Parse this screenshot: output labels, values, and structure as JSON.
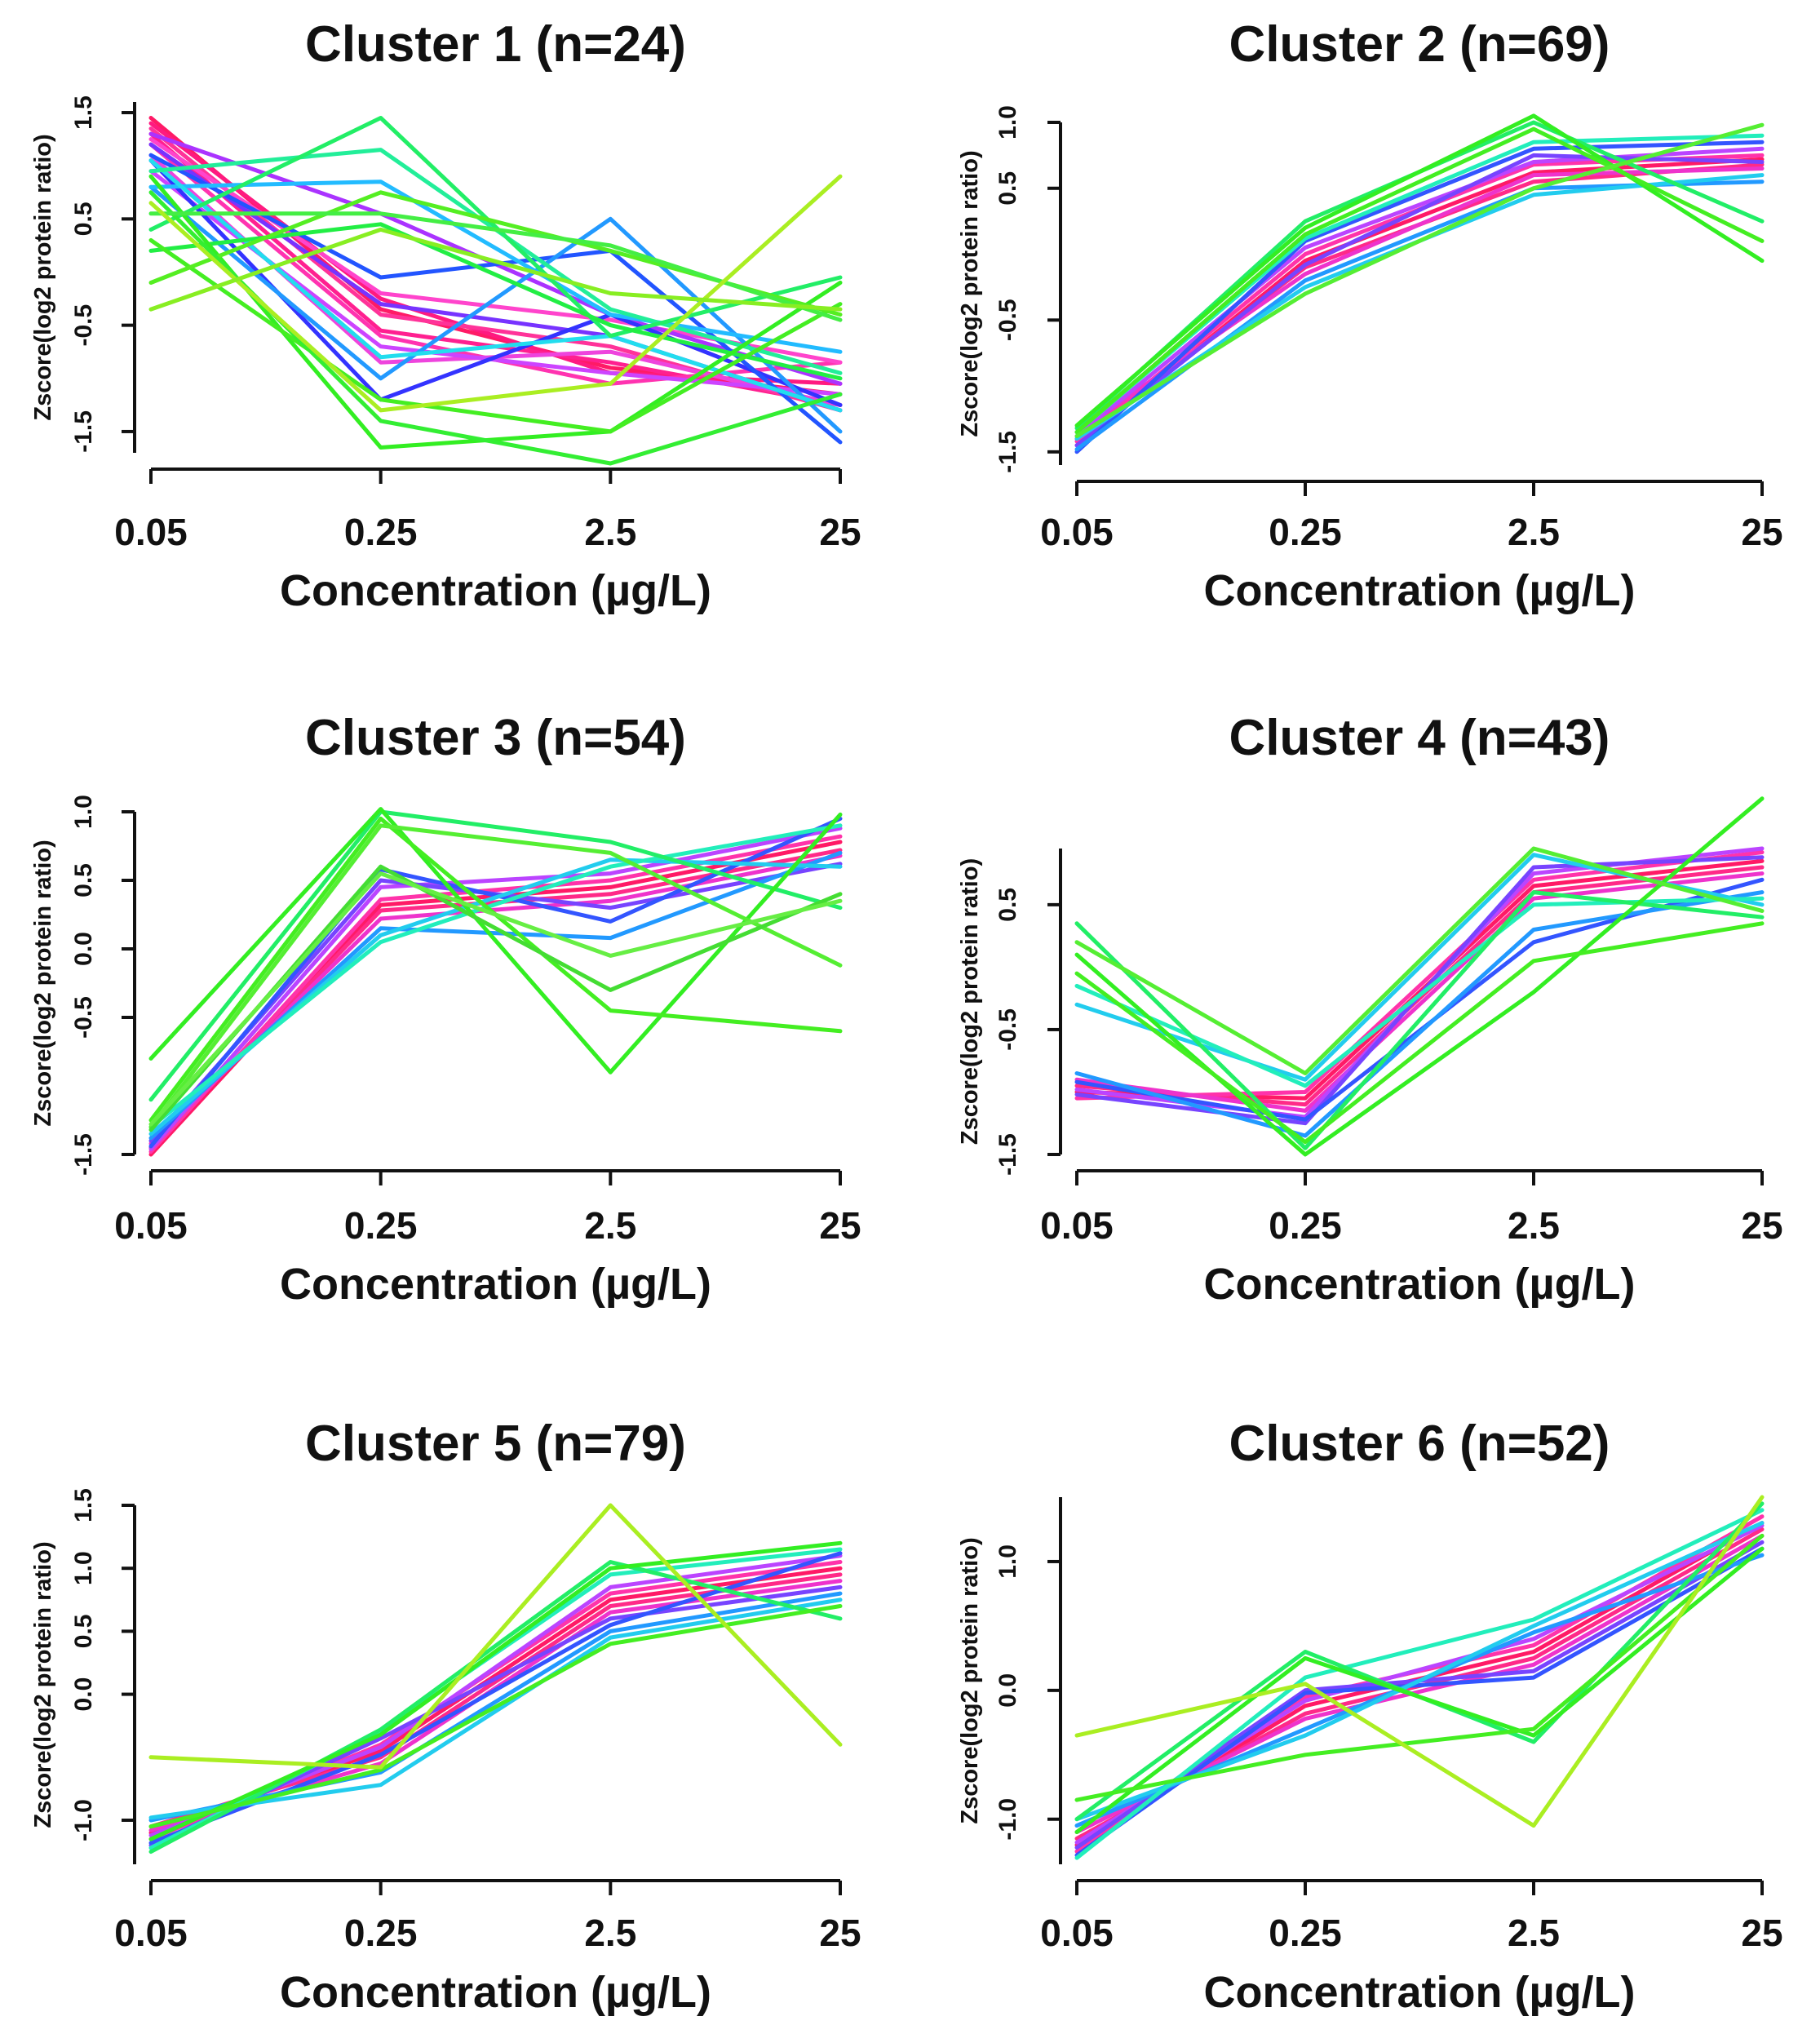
{
  "chart_data": [
    {
      "type": "line",
      "title": "Cluster 1 (n=24)",
      "xlabel": "Concentration (µg/L)",
      "ylabel": "Zscore(log2 protein ratio)",
      "categories": [
        "0.05",
        "0.25",
        "2.5",
        "25"
      ],
      "yticks": [
        "-1.5",
        "-0.5",
        "0.5",
        "1.5"
      ],
      "ylim": [
        -1.7,
        1.6
      ],
      "grid": false,
      "series": [
        {
          "color": "#ff1a66",
          "values": [
            1.45,
            -0.35,
            -0.9,
            -1.15
          ]
        },
        {
          "color": "#ff1a80",
          "values": [
            1.4,
            -0.25,
            -0.95,
            -1.05
          ]
        },
        {
          "color": "#ff2090",
          "values": [
            1.3,
            -0.55,
            -0.85,
            -1.25
          ]
        },
        {
          "color": "#ff3399",
          "values": [
            1.35,
            -0.4,
            -0.7,
            -1.3
          ]
        },
        {
          "color": "#ff33b0",
          "values": [
            1.2,
            -0.6,
            -1.05,
            -0.85
          ]
        },
        {
          "color": "#ff44cc",
          "values": [
            1.25,
            -0.2,
            -0.45,
            -0.85
          ]
        },
        {
          "color": "#ee44dd",
          "values": [
            1.1,
            -0.85,
            -0.75,
            -1.25
          ]
        },
        {
          "color": "#cc44ff",
          "values": [
            0.95,
            -0.7,
            -0.95,
            -1.15
          ]
        },
        {
          "color": "#aa33ff",
          "values": [
            1.3,
            0.55,
            -0.4,
            -1.05
          ]
        },
        {
          "color": "#7733ff",
          "values": [
            1.2,
            -0.3,
            -0.6,
            -1.3
          ]
        },
        {
          "color": "#3333ff",
          "values": [
            1.05,
            -1.2,
            -0.4,
            -1.25
          ]
        },
        {
          "color": "#2255ff",
          "values": [
            1.1,
            -0.05,
            0.2,
            -1.6
          ]
        },
        {
          "color": "#2299ff",
          "values": [
            0.8,
            -1.0,
            0.5,
            -1.5
          ]
        },
        {
          "color": "#22bbff",
          "values": [
            0.8,
            0.85,
            -0.4,
            -0.75
          ]
        },
        {
          "color": "#22ddee",
          "values": [
            1.05,
            -0.8,
            -0.6,
            -1.3
          ]
        },
        {
          "color": "#22ee99",
          "values": [
            0.95,
            1.15,
            -0.35,
            -0.95
          ]
        },
        {
          "color": "#22ee66",
          "values": [
            0.4,
            1.45,
            -0.6,
            -0.05
          ]
        },
        {
          "color": "#22ee44",
          "values": [
            0.2,
            0.45,
            -0.5,
            -1.0
          ]
        },
        {
          "color": "#33ee22",
          "values": [
            0.9,
            -1.65,
            -1.5,
            -0.1
          ]
        },
        {
          "color": "#44ee22",
          "values": [
            0.3,
            -1.2,
            -1.5,
            -0.3
          ]
        },
        {
          "color": "#55ee22",
          "values": [
            -0.1,
            0.75,
            0.2,
            -0.4
          ]
        },
        {
          "color": "#33ee33",
          "values": [
            0.75,
            -1.4,
            -1.8,
            -1.15
          ]
        },
        {
          "color": "#44ee44",
          "values": [
            0.55,
            0.55,
            0.25,
            -0.45
          ]
        },
        {
          "color": "#aaee22",
          "values": [
            0.65,
            -1.3,
            -1.05,
            0.9
          ]
        },
        {
          "color": "#88ee22",
          "values": [
            -0.35,
            0.4,
            -0.2,
            -0.35
          ]
        }
      ]
    },
    {
      "type": "line",
      "title": "Cluster 2 (n=69)",
      "xlabel": "Concentration (µg/L)",
      "ylabel": "Zscore(log2 protein ratio)",
      "categories": [
        "0.05",
        "0.25",
        "2.5",
        "25"
      ],
      "yticks": [
        "-1.5",
        "-0.5",
        "0.5",
        "1.0"
      ],
      "ylim": [
        -1.6,
        1.0
      ],
      "grid": false,
      "series": [
        {
          "color": "#ff1a66",
          "values": [
            -1.45,
            -0.05,
            0.62,
            0.72
          ]
        },
        {
          "color": "#ff2a88",
          "values": [
            -1.4,
            -0.1,
            0.55,
            0.68
          ]
        },
        {
          "color": "#ff33aa",
          "values": [
            -1.42,
            0.0,
            0.68,
            0.75
          ]
        },
        {
          "color": "#ee33cc",
          "values": [
            -1.35,
            -0.15,
            0.6,
            0.65
          ]
        },
        {
          "color": "#bb44ff",
          "values": [
            -1.38,
            0.05,
            0.7,
            0.8
          ]
        },
        {
          "color": "#7744ff",
          "values": [
            -1.45,
            -0.08,
            0.75,
            0.7
          ]
        },
        {
          "color": "#3355ff",
          "values": [
            -1.5,
            0.1,
            0.8,
            0.85
          ]
        },
        {
          "color": "#2299ff",
          "values": [
            -1.48,
            -0.2,
            0.5,
            0.55
          ]
        },
        {
          "color": "#22ccee",
          "values": [
            -1.4,
            -0.25,
            0.45,
            0.6
          ]
        },
        {
          "color": "#22eebb",
          "values": [
            -1.35,
            0.12,
            0.85,
            0.9
          ]
        },
        {
          "color": "#22ee66",
          "values": [
            -1.32,
            0.25,
            1.0,
            0.25
          ]
        },
        {
          "color": "#33ee22",
          "values": [
            -1.3,
            0.2,
            1.05,
            -0.05
          ]
        },
        {
          "color": "#44ee22",
          "values": [
            -1.35,
            0.15,
            0.95,
            0.1
          ]
        },
        {
          "color": "#55ee33",
          "values": [
            -1.38,
            -0.3,
            0.5,
            0.98
          ]
        }
      ]
    },
    {
      "type": "line",
      "title": "Cluster 3 (n=54)",
      "xlabel": "Concentration (µg/L)",
      "ylabel": "Zscore(log2 protein ratio)",
      "categories": [
        "0.05",
        "0.25",
        "2.5",
        "25"
      ],
      "yticks": [
        "-1.5",
        "-0.5",
        "0.0",
        "0.5",
        "1.0"
      ],
      "ylim": [
        -1.5,
        1.0
      ],
      "grid": false,
      "series": [
        {
          "color": "#ff1a66",
          "values": [
            -1.5,
            0.32,
            0.45,
            0.78
          ]
        },
        {
          "color": "#ff2a88",
          "values": [
            -1.45,
            0.28,
            0.4,
            0.72
          ]
        },
        {
          "color": "#ff33aa",
          "values": [
            -1.48,
            0.36,
            0.5,
            0.82
          ]
        },
        {
          "color": "#ee33cc",
          "values": [
            -1.42,
            0.22,
            0.35,
            0.68
          ]
        },
        {
          "color": "#bb44ff",
          "values": [
            -1.46,
            0.45,
            0.55,
            0.88
          ]
        },
        {
          "color": "#7744ff",
          "values": [
            -1.4,
            0.5,
            0.3,
            0.62
          ]
        },
        {
          "color": "#3355ff",
          "values": [
            -1.44,
            0.58,
            0.2,
            0.95
          ]
        },
        {
          "color": "#2299ff",
          "values": [
            -1.38,
            0.15,
            0.08,
            0.7
          ]
        },
        {
          "color": "#22ccee",
          "values": [
            -1.35,
            0.1,
            0.65,
            0.6
          ]
        },
        {
          "color": "#22eebb",
          "values": [
            -1.3,
            0.05,
            0.6,
            0.9
          ]
        },
        {
          "color": "#22ee66",
          "values": [
            -1.1,
            1.0,
            0.78,
            0.3
          ]
        },
        {
          "color": "#33ee22",
          "values": [
            -0.8,
            1.02,
            -0.9,
            0.98
          ]
        },
        {
          "color": "#44ee22",
          "values": [
            -1.25,
            0.95,
            -0.45,
            -0.6
          ]
        },
        {
          "color": "#55ee33",
          "values": [
            -1.3,
            0.9,
            0.7,
            -0.12
          ]
        },
        {
          "color": "#44dd33",
          "values": [
            -1.32,
            0.6,
            -0.3,
            0.4
          ]
        },
        {
          "color": "#66ee44",
          "values": [
            -1.28,
            0.55,
            -0.05,
            0.35
          ]
        }
      ]
    },
    {
      "type": "line",
      "title": "Cluster 4 (n=43)",
      "xlabel": "Concentration (µg/L)",
      "ylabel": "Zscore(log2 protein ratio)",
      "categories": [
        "0.05",
        "0.25",
        "2.5",
        "25"
      ],
      "yticks": [
        "-1.5",
        "-0.5",
        "0.5"
      ],
      "ylim": [
        -1.5,
        0.95
      ],
      "grid": false,
      "series": [
        {
          "color": "#ff1a66",
          "values": [
            -1.0,
            -1.05,
            0.65,
            0.85
          ]
        },
        {
          "color": "#ff2a88",
          "values": [
            -0.95,
            -1.1,
            0.6,
            0.8
          ]
        },
        {
          "color": "#ff33aa",
          "values": [
            -1.05,
            -1.0,
            0.7,
            0.92
          ]
        },
        {
          "color": "#ee33cc",
          "values": [
            -0.9,
            -1.15,
            0.55,
            0.75
          ]
        },
        {
          "color": "#bb44ff",
          "values": [
            -0.98,
            -1.2,
            0.75,
            0.95
          ]
        },
        {
          "color": "#7744ff",
          "values": [
            -1.02,
            -1.25,
            0.8,
            0.88
          ]
        },
        {
          "color": "#3355ff",
          "values": [
            -0.92,
            -1.22,
            0.2,
            0.7
          ]
        },
        {
          "color": "#2299ff",
          "values": [
            -0.85,
            -1.35,
            0.3,
            0.6
          ]
        },
        {
          "color": "#22ccee",
          "values": [
            -0.3,
            -0.9,
            0.9,
            0.5
          ]
        },
        {
          "color": "#22eebb",
          "values": [
            -0.15,
            -0.95,
            0.5,
            0.55
          ]
        },
        {
          "color": "#22ee66",
          "values": [
            0.35,
            -1.45,
            0.6,
            0.4
          ]
        },
        {
          "color": "#33ee22",
          "values": [
            0.1,
            -1.5,
            -0.2,
            1.35
          ]
        },
        {
          "color": "#44ee22",
          "values": [
            -0.05,
            -1.4,
            0.05,
            0.35
          ]
        },
        {
          "color": "#55ee33",
          "values": [
            0.2,
            -0.85,
            0.95,
            0.45
          ]
        }
      ]
    },
    {
      "type": "line",
      "title": "Cluster 5 (n=79)",
      "xlabel": "Concentration (µg/L)",
      "ylabel": "Zscore(log2 protein ratio)",
      "categories": [
        "0.05",
        "0.25",
        "2.5",
        "25"
      ],
      "yticks": [
        "-1.0",
        "0.0",
        "0.5",
        "1.0",
        "1.5"
      ],
      "ylim": [
        -1.35,
        1.5
      ],
      "grid": false,
      "series": [
        {
          "color": "#ff1a66",
          "values": [
            -1.1,
            -0.45,
            0.75,
            1.0
          ]
        },
        {
          "color": "#ff2a88",
          "values": [
            -1.05,
            -0.5,
            0.7,
            0.95
          ]
        },
        {
          "color": "#ff33aa",
          "values": [
            -1.15,
            -0.4,
            0.8,
            1.05
          ]
        },
        {
          "color": "#ee33cc",
          "values": [
            -1.08,
            -0.55,
            0.65,
            0.9
          ]
        },
        {
          "color": "#bb44ff",
          "values": [
            -1.12,
            -0.42,
            0.85,
            1.1
          ]
        },
        {
          "color": "#7744ff",
          "values": [
            -1.2,
            -0.35,
            0.6,
            0.85
          ]
        },
        {
          "color": "#3355ff",
          "values": [
            -1.18,
            -0.48,
            0.55,
            1.12
          ]
        },
        {
          "color": "#2299ff",
          "values": [
            -1.0,
            -0.62,
            0.5,
            0.8
          ]
        },
        {
          "color": "#22ccee",
          "values": [
            -0.98,
            -0.72,
            0.45,
            0.75
          ]
        },
        {
          "color": "#22eebb",
          "values": [
            -1.22,
            -0.3,
            0.95,
            1.15
          ]
        },
        {
          "color": "#22ee66",
          "values": [
            -1.25,
            -0.28,
            1.05,
            0.6
          ]
        },
        {
          "color": "#33ee22",
          "values": [
            -1.15,
            -0.32,
            1.0,
            1.2
          ]
        },
        {
          "color": "#44ee22",
          "values": [
            -1.05,
            -0.6,
            0.4,
            0.7
          ]
        },
        {
          "color": "#aaee22",
          "values": [
            -0.5,
            -0.58,
            1.5,
            -0.4
          ]
        }
      ]
    },
    {
      "type": "line",
      "title": "Cluster 6 (n=52)",
      "xlabel": "Concentration (µg/L)",
      "ylabel": "Zscore(log2 protein ratio)",
      "categories": [
        "0.05",
        "0.25",
        "2.5",
        "25"
      ],
      "yticks": [
        "-1.0",
        "0.0",
        "1.0"
      ],
      "ylim": [
        -1.35,
        1.5
      ],
      "grid": false,
      "series": [
        {
          "color": "#ff1a66",
          "values": [
            -1.2,
            -0.12,
            0.3,
            1.3
          ]
        },
        {
          "color": "#ff2a88",
          "values": [
            -1.15,
            -0.18,
            0.25,
            1.25
          ]
        },
        {
          "color": "#ff33aa",
          "values": [
            -1.25,
            -0.05,
            0.35,
            1.35
          ]
        },
        {
          "color": "#ee33cc",
          "values": [
            -1.1,
            -0.22,
            0.2,
            1.2
          ]
        },
        {
          "color": "#bb44ff",
          "values": [
            -1.18,
            -0.08,
            0.4,
            1.28
          ]
        },
        {
          "color": "#7744ff",
          "values": [
            -1.22,
            0.0,
            0.15,
            1.15
          ]
        },
        {
          "color": "#3355ff",
          "values": [
            -1.28,
            -0.02,
            0.1,
            1.1
          ]
        },
        {
          "color": "#2299ff",
          "values": [
            -1.05,
            -0.3,
            0.45,
            1.05
          ]
        },
        {
          "color": "#22ccee",
          "values": [
            -1.0,
            -0.35,
            0.5,
            1.3
          ]
        },
        {
          "color": "#22eebb",
          "values": [
            -1.3,
            0.1,
            0.55,
            1.4
          ]
        },
        {
          "color": "#22ee66",
          "values": [
            -1.0,
            0.3,
            -0.4,
            1.45
          ]
        },
        {
          "color": "#33ee22",
          "values": [
            -1.1,
            0.25,
            -0.35,
            1.1
          ]
        },
        {
          "color": "#44ee22",
          "values": [
            -0.85,
            -0.5,
            -0.3,
            1.2
          ]
        },
        {
          "color": "#aaee22",
          "values": [
            -0.35,
            0.05,
            -1.05,
            1.5
          ]
        }
      ]
    }
  ]
}
